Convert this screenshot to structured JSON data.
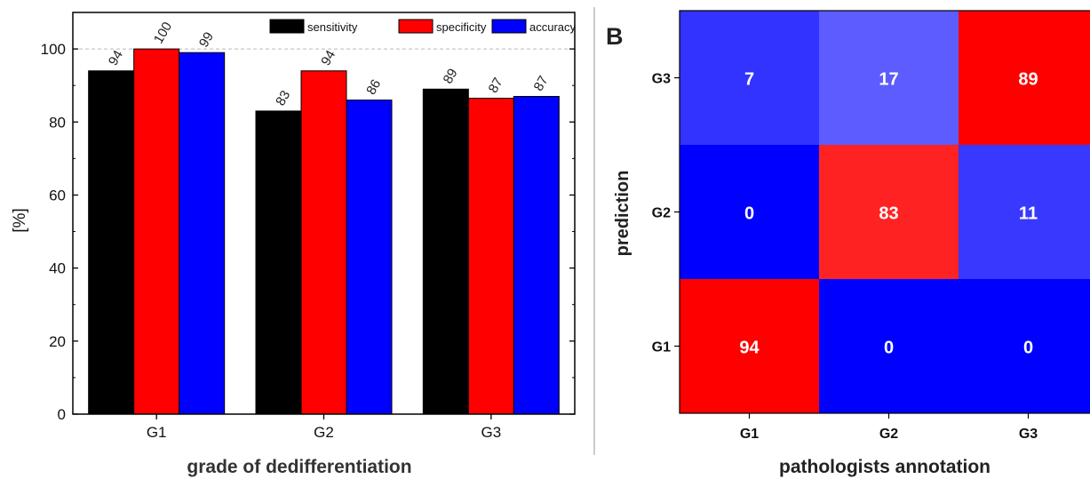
{
  "chart_data": [
    {
      "type": "bar",
      "title": "",
      "xlabel": "grade of dedifferentiation",
      "ylabel": "[%]",
      "categories": [
        "G1",
        "G2",
        "G3"
      ],
      "series": [
        {
          "name": "sensitivity",
          "color": "#000000",
          "values": [
            94,
            83,
            89
          ],
          "labels": [
            "94",
            "83",
            "89"
          ]
        },
        {
          "name": "specificity",
          "color": "#ff0000",
          "values": [
            100,
            94,
            86.5
          ],
          "labels": [
            "100",
            "94",
            "87"
          ]
        },
        {
          "name": "accuracy",
          "color": "#0000ff",
          "values": [
            99,
            86,
            87
          ],
          "labels": [
            "99",
            "86",
            "87"
          ]
        }
      ],
      "ylim": [
        0,
        110
      ],
      "yticks": [
        0,
        20,
        40,
        60,
        80,
        100
      ],
      "grid": "horizontal dashed at 100",
      "legend": "top-right"
    },
    {
      "type": "heatmap",
      "panel_label": "B",
      "xlabel": "pathologists annotation",
      "ylabel": "prediction",
      "x_categories": [
        "G1",
        "G2",
        "G3"
      ],
      "y_categories": [
        "G1",
        "G2",
        "G3"
      ],
      "cells": [
        {
          "x": "G1",
          "y": "G3",
          "value": 7,
          "color": "#3333ff"
        },
        {
          "x": "G2",
          "y": "G3",
          "value": 17,
          "color": "#5c5cff"
        },
        {
          "x": "G3",
          "y": "G3",
          "value": 89,
          "color": "#ff0000"
        },
        {
          "x": "G1",
          "y": "G2",
          "value": 0,
          "color": "#0000ff"
        },
        {
          "x": "G2",
          "y": "G2",
          "value": 83,
          "color": "#ff2222"
        },
        {
          "x": "G3",
          "y": "G2",
          "value": 11,
          "color": "#3838ff"
        },
        {
          "x": "G1",
          "y": "G1",
          "value": 94,
          "color": "#ff0000"
        },
        {
          "x": "G2",
          "y": "G1",
          "value": 0,
          "color": "#0000ff"
        },
        {
          "x": "G3",
          "y": "G1",
          "value": 0,
          "color": "#0000ff"
        }
      ]
    }
  ]
}
